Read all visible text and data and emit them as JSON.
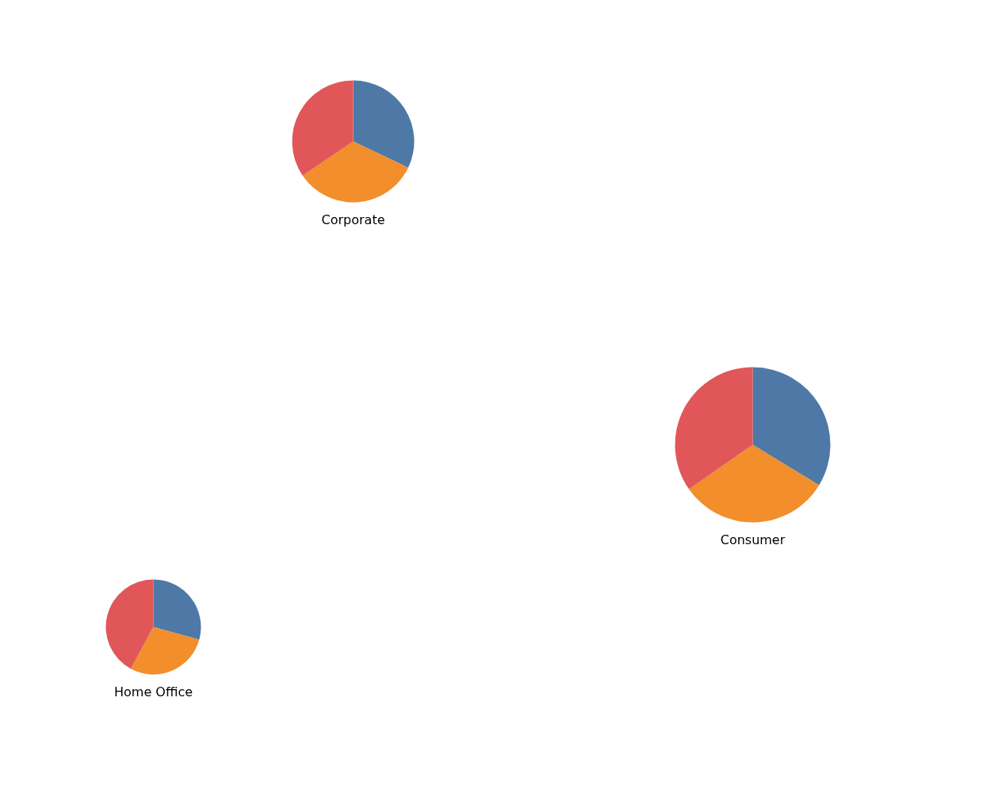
{
  "chart_data": [
    {
      "type": "pie",
      "title": "Corporate",
      "categories": [
        null,
        null,
        null
      ],
      "values": [
        32.1,
        33.4,
        34.5
      ],
      "colors": [
        "#4e79a7",
        "#f28e2b",
        "#e15759"
      ]
    },
    {
      "type": "pie",
      "title": "Consumer",
      "categories": [
        null,
        null,
        null
      ],
      "values": [
        33.7,
        31.6,
        34.7
      ],
      "colors": [
        "#4e79a7",
        "#f28e2b",
        "#e15759"
      ]
    },
    {
      "type": "pie",
      "title": "Home Office",
      "categories": [
        null,
        null,
        null
      ],
      "values": [
        29.3,
        28.6,
        42.1
      ],
      "colors": [
        "#4e79a7",
        "#f28e2b",
        "#e15759"
      ]
    }
  ]
}
